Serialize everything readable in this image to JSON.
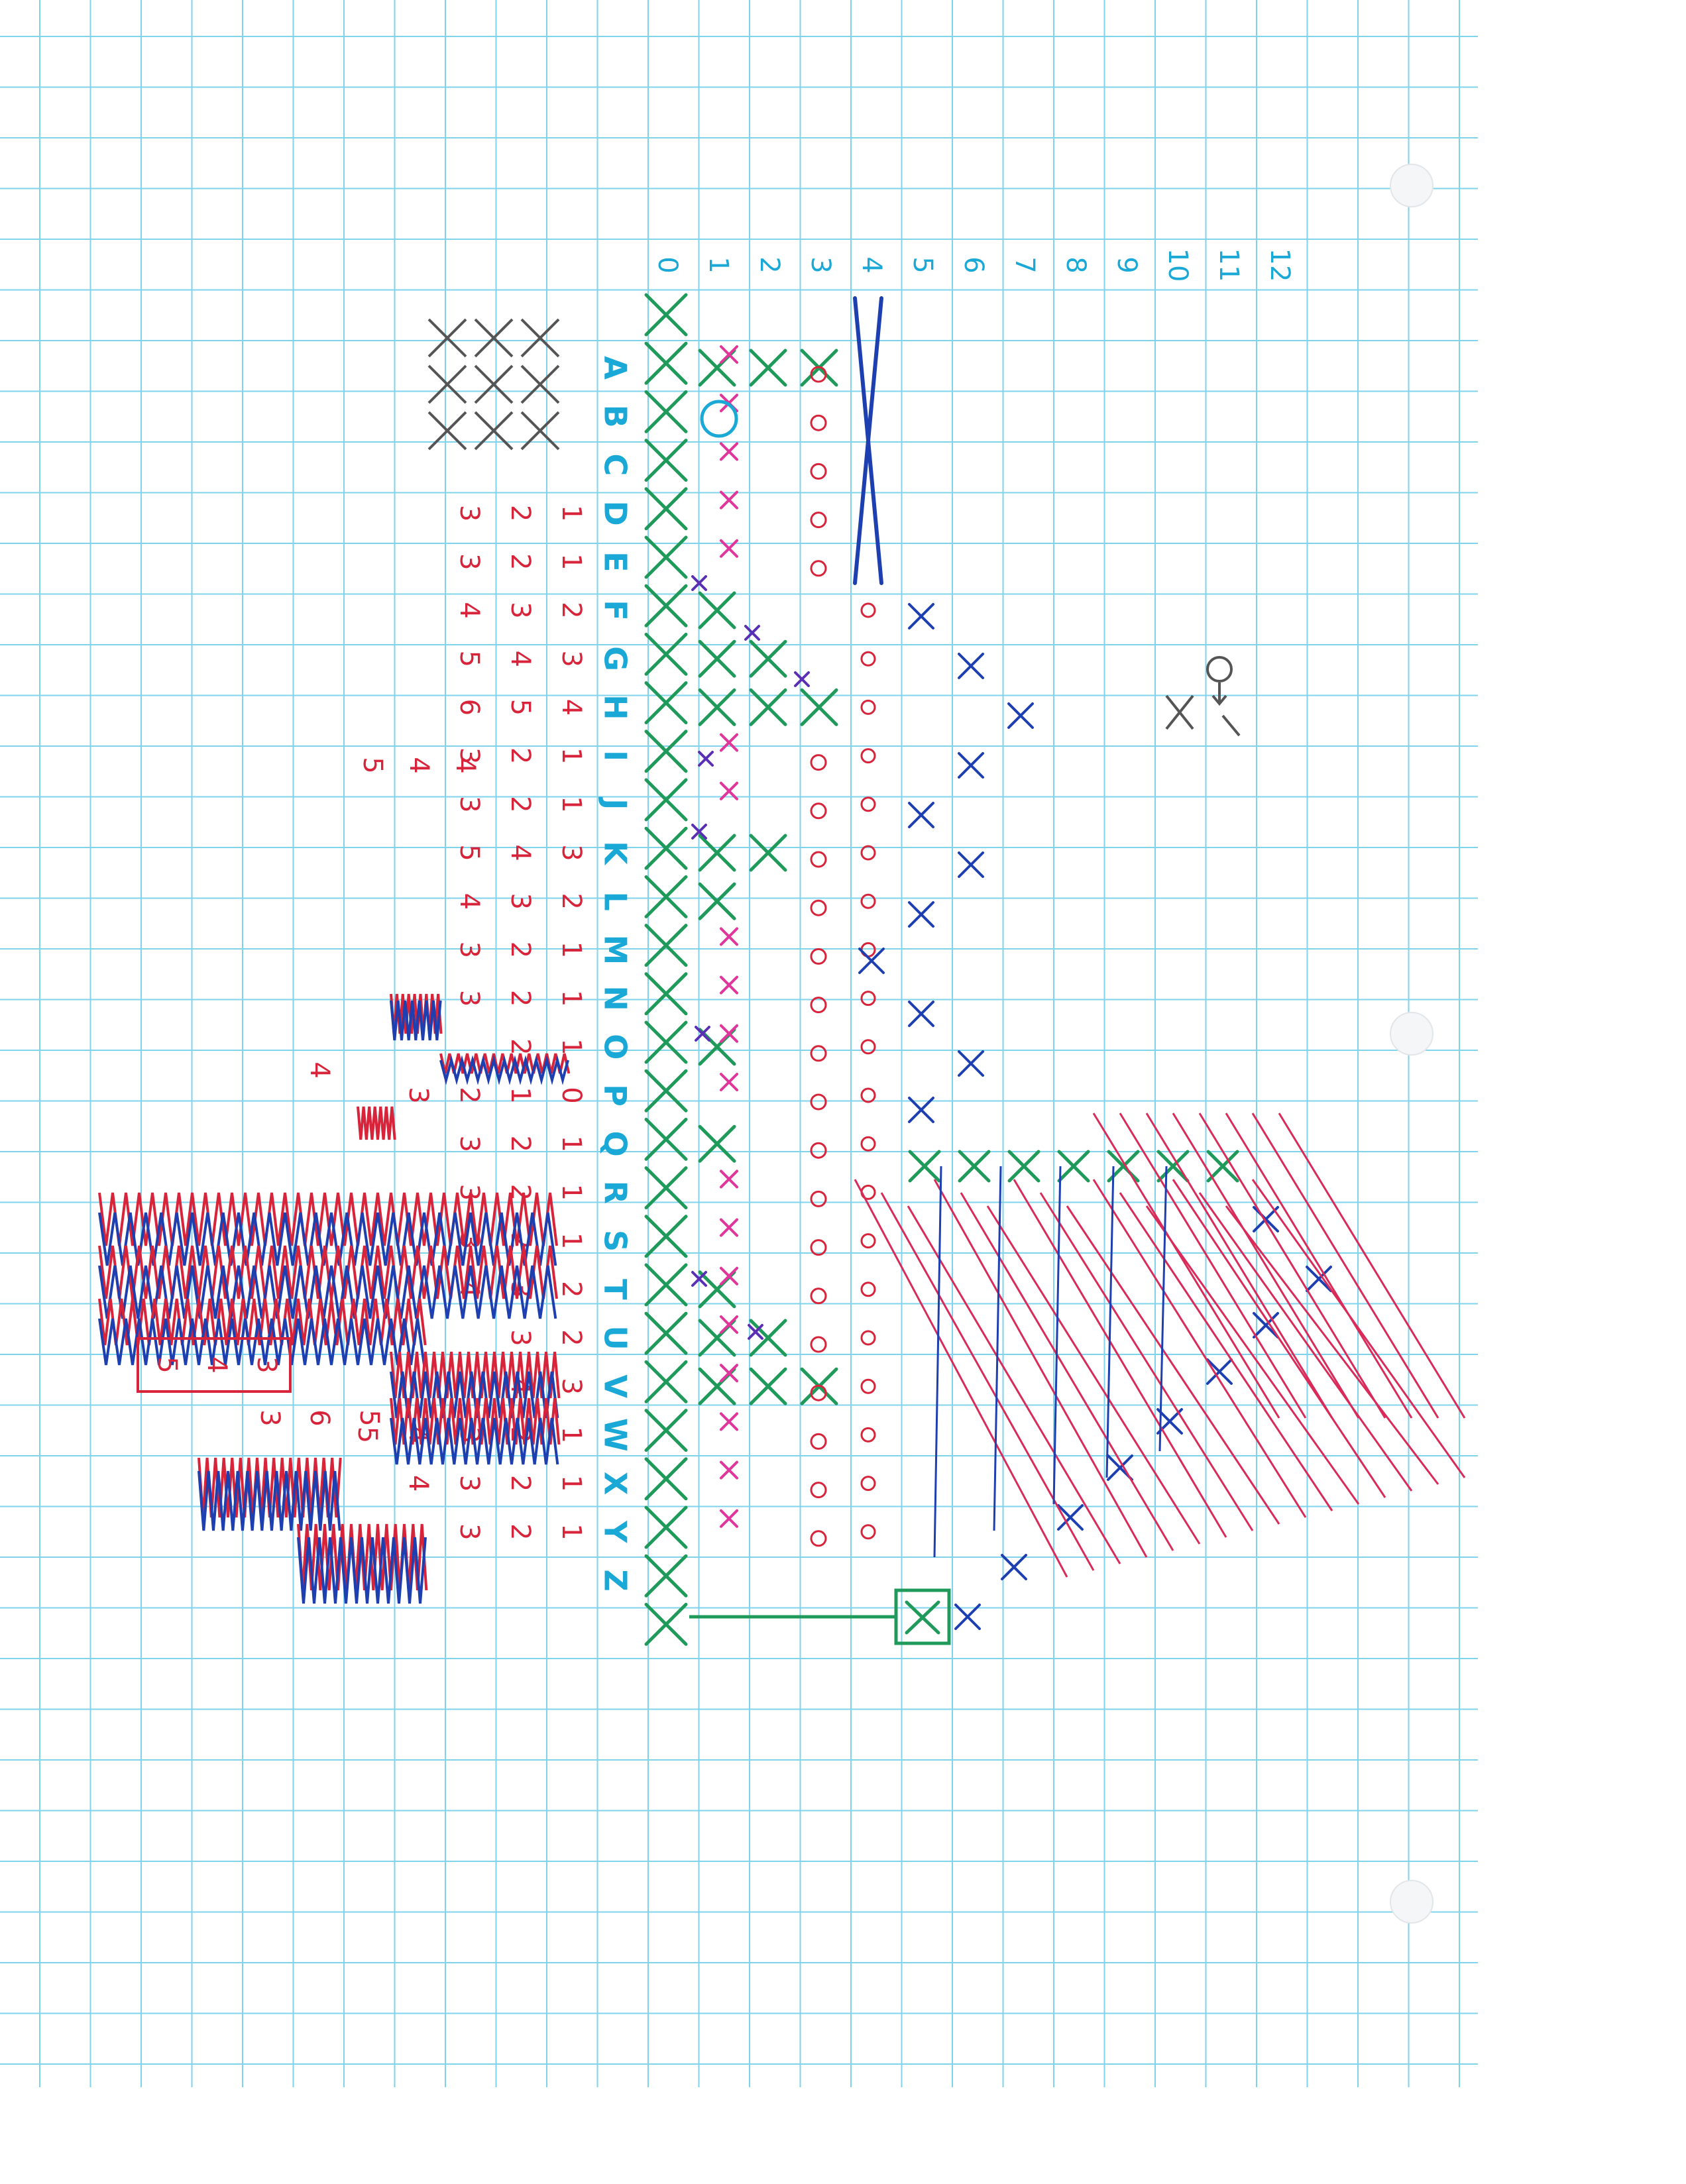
{
  "sheet": {
    "grid_color": "#7fd3ea",
    "ink_colors": {
      "cyan": "#1aa9d6",
      "green": "#1f9a5a",
      "pink": "#e0359a",
      "red": "#d8243a",
      "purple": "#5a2fb4",
      "blue": "#1d3fb0"
    }
  },
  "column_numbers": [
    "0",
    "1",
    "2",
    "3",
    "4",
    "5",
    "6",
    "7",
    "8",
    "9",
    "10",
    "11",
    "12"
  ],
  "row_letters": [
    "A",
    "B",
    "C",
    "D",
    "E",
    "F",
    "G",
    "H",
    "I",
    "J",
    "K",
    "L",
    "M",
    "N",
    "O",
    "P",
    "Q",
    "R",
    "S",
    "T",
    "U",
    "V",
    "W",
    "X",
    "Y",
    "Z"
  ],
  "red_number_rows": {
    "D": [
      "3",
      "2",
      "1"
    ],
    "E": [
      "3",
      "2",
      "1"
    ],
    "F": [
      "4",
      "3",
      "2"
    ],
    "G": [
      "5",
      "4",
      "3"
    ],
    "H": [
      "6",
      "5",
      "4"
    ],
    "I": [
      "3",
      "2",
      "1"
    ],
    "J": [
      "3",
      "2",
      "1"
    ],
    "K": [
      "5",
      "4",
      "3"
    ],
    "L": [
      "4",
      "3",
      "2"
    ],
    "M": [
      "3",
      "2",
      "1"
    ],
    "N": [
      "3",
      "2",
      "1"
    ],
    "O": [
      "2",
      "1"
    ],
    "P": [
      "3",
      "2",
      "1",
      "0"
    ],
    "Q": [
      "3",
      "2",
      "1"
    ],
    "R": [
      "3",
      "2",
      "1"
    ],
    "S": [
      "3",
      "2",
      "1"
    ],
    "T": [
      "4",
      "3",
      "2"
    ],
    "U": [
      "3",
      "2"
    ],
    "V": [
      "4",
      "3"
    ],
    "W": [
      "5",
      "4",
      "3",
      "2",
      "1"
    ],
    "X": [
      "4",
      "3",
      "2",
      "1"
    ],
    "Y": [
      "3",
      "2",
      "1"
    ]
  },
  "margin_notes": {
    "left_number_4": "4",
    "row_i_left": [
      "5",
      "4",
      "4"
    ],
    "boxed_row": [
      "5",
      "4",
      "3"
    ],
    "row_v_extra": [
      "3",
      "6",
      "5"
    ]
  }
}
